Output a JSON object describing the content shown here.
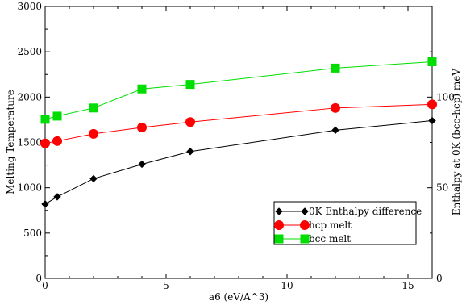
{
  "chart_data": {
    "type": "line",
    "xlabel": "a6 (eV/A^3)",
    "ylabel": "Melting Temperature",
    "y2label": "Enthalpy at 0K (bcc-hcp) meV",
    "xlim": [
      0,
      16
    ],
    "ylim": [
      0,
      3000
    ],
    "y2lim": [
      0,
      150
    ],
    "x_ticks": [
      "0",
      "5",
      "10",
      "15"
    ],
    "y_ticks": [
      "0",
      "500",
      "1000",
      "1500",
      "2000",
      "2500",
      "3000"
    ],
    "y2_ticks": [
      "0",
      "50",
      "100"
    ],
    "legend_position": "lower-right",
    "grid": false,
    "series": [
      {
        "name": "0K Enthalpy difference",
        "color": "#000000",
        "marker": "diamond",
        "x": [
          0,
          0.5,
          2,
          4,
          6,
          12,
          16
        ],
        "y": [
          820,
          900,
          1100,
          1260,
          1400,
          1635,
          1740
        ]
      },
      {
        "name": "hcp melt",
        "color": "#ff0000",
        "marker": "circle",
        "x": [
          0,
          0.5,
          2,
          4,
          6,
          12,
          16
        ],
        "y": [
          1490,
          1515,
          1595,
          1665,
          1725,
          1880,
          1920
        ]
      },
      {
        "name": "bcc melt",
        "color": "#00dd00",
        "marker": "square",
        "x": [
          0,
          0.5,
          2,
          4,
          6,
          12,
          16
        ],
        "y": [
          1755,
          1790,
          1880,
          2090,
          2140,
          2320,
          2390
        ]
      }
    ]
  }
}
